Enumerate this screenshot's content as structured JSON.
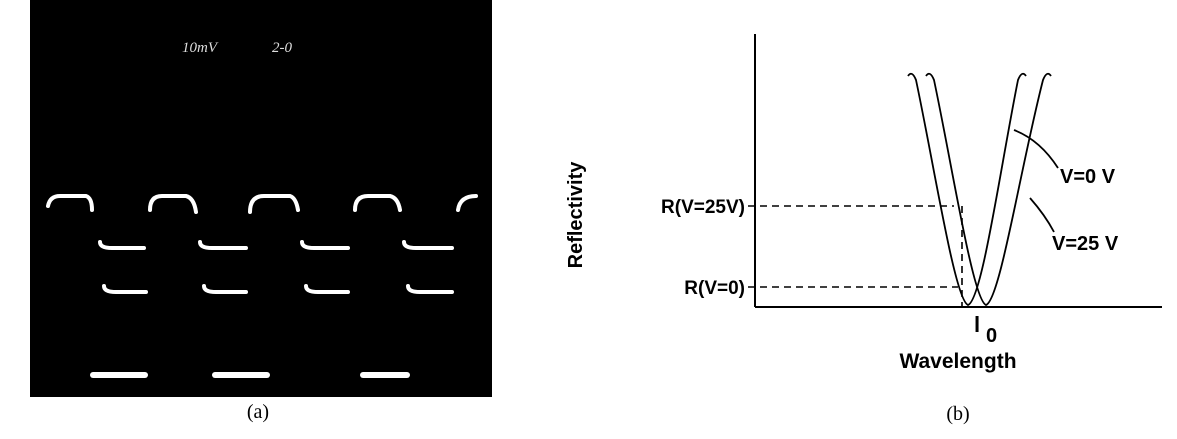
{
  "panel_a": {
    "caption": "(a)",
    "scope_labels": [
      "10mV",
      "2-0"
    ]
  },
  "panel_b": {
    "caption": "(b)",
    "y_label": "Reflectivity",
    "x_label": "Wavelength",
    "levels": [
      "R(V=25V)",
      "R(V=0)"
    ],
    "x_marker": {
      "symbol": "l",
      "subscript": "0"
    },
    "curve_labels": [
      "V=0  V",
      "V=25  V"
    ]
  }
}
